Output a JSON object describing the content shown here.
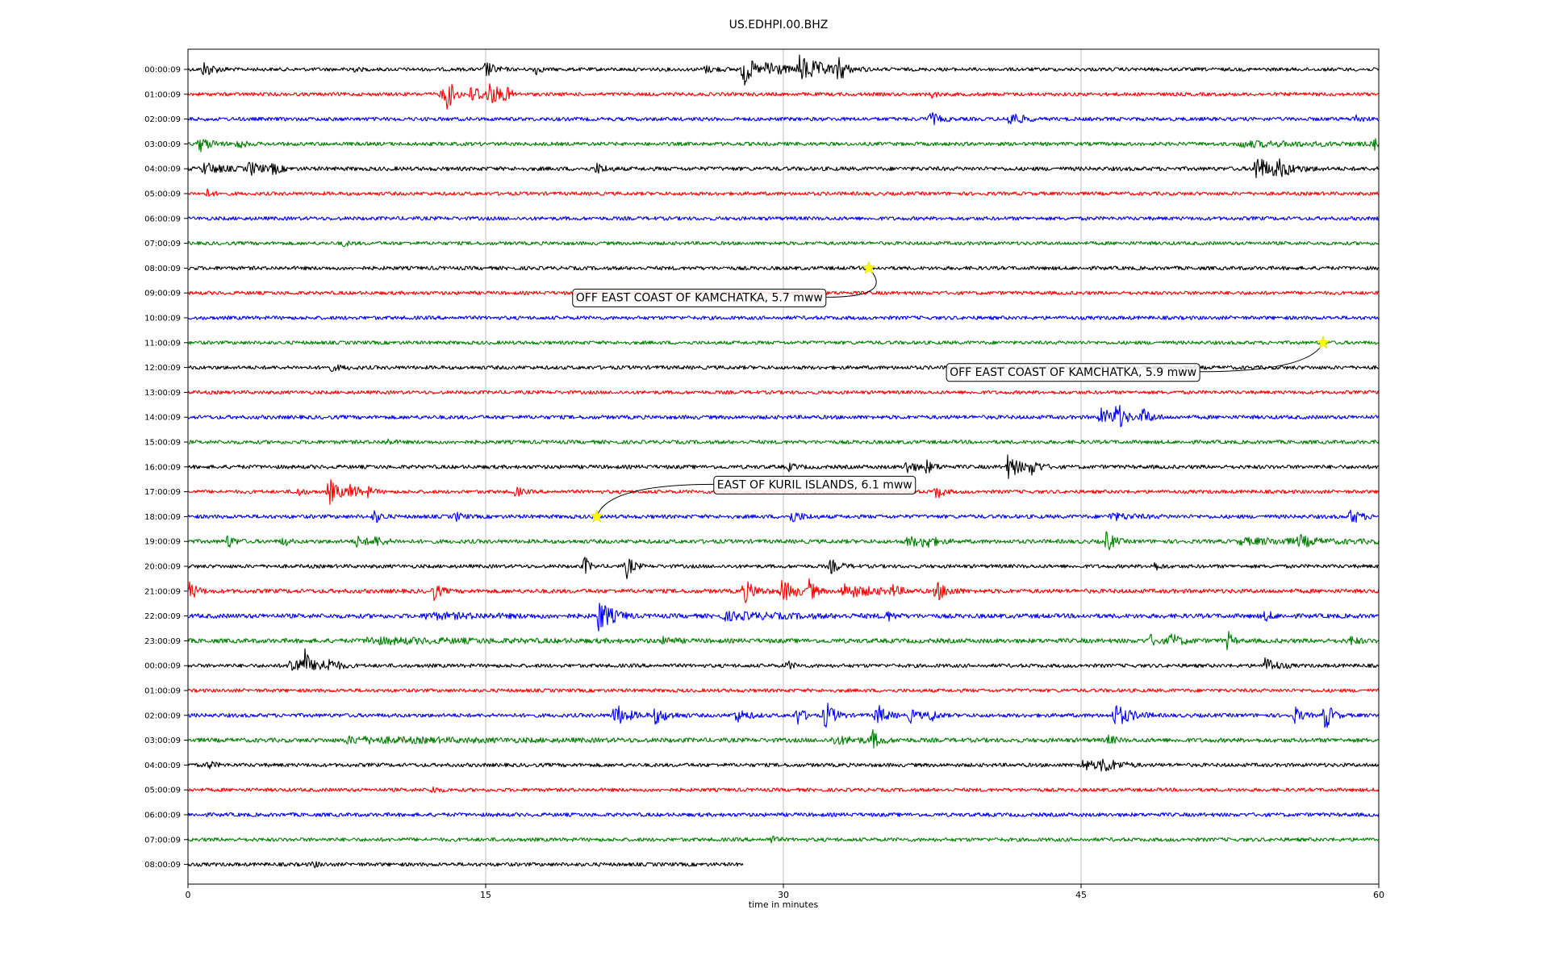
{
  "chart_data": {
    "type": "line",
    "title": "US.EDHPI.00.BHZ",
    "xlabel": "time in minutes",
    "ylabel": "",
    "xlim": [
      0,
      60
    ],
    "xticks": [
      0,
      15,
      30,
      45,
      60
    ],
    "grid": "vertical",
    "row_colors": [
      "#000000",
      "#ff0000",
      "#0000ff",
      "#008000"
    ],
    "rows": [
      {
        "label": "00:00:09",
        "noise": 2.2,
        "end_min": 60,
        "bursts": [
          {
            "t": 0.8,
            "a": 9,
            "w": 0.5
          },
          {
            "t": 8.1,
            "a": 4,
            "w": 0.3
          },
          {
            "t": 15.0,
            "a": 10,
            "w": 0.4
          },
          {
            "t": 17.5,
            "a": 7,
            "w": 0.2
          },
          {
            "t": 26.0,
            "a": 4,
            "w": 0.6
          },
          {
            "t": 28.0,
            "a": 24,
            "w": 0.4
          },
          {
            "t": 29.2,
            "a": 14,
            "w": 0.6
          },
          {
            "t": 30.8,
            "a": 16,
            "w": 1.2
          },
          {
            "t": 32.8,
            "a": 20,
            "w": 0.2
          }
        ]
      },
      {
        "label": "01:00:09",
        "noise": 2.2,
        "end_min": 60,
        "bursts": [
          {
            "t": 12.8,
            "a": 8,
            "w": 0.6
          },
          {
            "t": 13.1,
            "a": 18,
            "w": 0.2
          },
          {
            "t": 14.3,
            "a": 10,
            "w": 0.8
          },
          {
            "t": 15.2,
            "a": 11,
            "w": 0.5
          },
          {
            "t": 16.0,
            "a": 7,
            "w": 0.2
          },
          {
            "t": 37.5,
            "a": 5,
            "w": 0.2
          }
        ]
      },
      {
        "label": "02:00:09",
        "noise": 2.3,
        "end_min": 60,
        "bursts": [
          {
            "t": 37.4,
            "a": 8,
            "w": 0.4
          },
          {
            "t": 41.4,
            "a": 10,
            "w": 0.5
          },
          {
            "t": 58.8,
            "a": 5,
            "w": 0.3
          }
        ]
      },
      {
        "label": "03:00:09",
        "noise": 2.3,
        "end_min": 60,
        "bursts": [
          {
            "t": 0.6,
            "a": 9,
            "w": 0.5
          },
          {
            "t": 2.5,
            "a": 6,
            "w": 0.3
          },
          {
            "t": 53.0,
            "a": 3,
            "w": 4.0
          },
          {
            "t": 59.8,
            "a": 6,
            "w": 0.3
          }
        ]
      },
      {
        "label": "04:00:09",
        "noise": 2.5,
        "end_min": 60,
        "bursts": [
          {
            "t": 0.8,
            "a": 7,
            "w": 0.8
          },
          {
            "t": 3.1,
            "a": 8,
            "w": 0.6
          },
          {
            "t": 4.3,
            "a": 6,
            "w": 0.3
          },
          {
            "t": 20.6,
            "a": 6,
            "w": 0.4
          },
          {
            "t": 53.8,
            "a": 18,
            "w": 0.6
          },
          {
            "t": 54.8,
            "a": 10,
            "w": 0.8
          }
        ]
      },
      {
        "label": "05:00:09",
        "noise": 2.2,
        "end_min": 60,
        "bursts": [
          {
            "t": 1.0,
            "a": 5,
            "w": 0.2
          }
        ]
      },
      {
        "label": "06:00:09",
        "noise": 2.3,
        "end_min": 60,
        "bursts": []
      },
      {
        "label": "07:00:09",
        "noise": 2.2,
        "end_min": 60,
        "bursts": [
          {
            "t": 7.8,
            "a": 3,
            "w": 0.3
          }
        ]
      },
      {
        "label": "08:00:09",
        "noise": 2.3,
        "end_min": 60,
        "bursts": []
      },
      {
        "label": "09:00:09",
        "noise": 2.2,
        "end_min": 60,
        "bursts": []
      },
      {
        "label": "10:00:09",
        "noise": 2.3,
        "end_min": 60,
        "bursts": []
      },
      {
        "label": "11:00:09",
        "noise": 2.2,
        "end_min": 60,
        "bursts": []
      },
      {
        "label": "12:00:09",
        "noise": 2.3,
        "end_min": 60,
        "bursts": [
          {
            "t": 7.0,
            "a": 4,
            "w": 0.6
          }
        ]
      },
      {
        "label": "13:00:09",
        "noise": 2.2,
        "end_min": 60,
        "bursts": []
      },
      {
        "label": "14:00:09",
        "noise": 2.4,
        "end_min": 60,
        "bursts": [
          {
            "t": 46.0,
            "a": 10,
            "w": 0.8
          },
          {
            "t": 46.8,
            "a": 16,
            "w": 0.3
          },
          {
            "t": 48.1,
            "a": 10,
            "w": 0.4
          }
        ]
      },
      {
        "label": "15:00:09",
        "noise": 2.3,
        "end_min": 60,
        "bursts": [
          {
            "t": 10.0,
            "a": 3,
            "w": 0.3
          }
        ]
      },
      {
        "label": "16:00:09",
        "noise": 2.4,
        "end_min": 60,
        "bursts": [
          {
            "t": 30.3,
            "a": 4,
            "w": 0.3
          },
          {
            "t": 36.2,
            "a": 8,
            "w": 0.4
          },
          {
            "t": 37.2,
            "a": 7,
            "w": 0.4
          },
          {
            "t": 41.3,
            "a": 14,
            "w": 0.6
          },
          {
            "t": 42.5,
            "a": 8,
            "w": 0.4
          }
        ]
      },
      {
        "label": "17:00:09",
        "noise": 2.2,
        "end_min": 60,
        "bursts": [
          {
            "t": 5.5,
            "a": 5,
            "w": 0.3
          },
          {
            "t": 7.1,
            "a": 16,
            "w": 0.5
          },
          {
            "t": 8.2,
            "a": 8,
            "w": 0.4
          },
          {
            "t": 9.0,
            "a": 6,
            "w": 0.3
          },
          {
            "t": 16.5,
            "a": 6,
            "w": 0.3
          },
          {
            "t": 37.7,
            "a": 9,
            "w": 0.3
          }
        ]
      },
      {
        "label": "18:00:09",
        "noise": 2.4,
        "end_min": 60,
        "bursts": [
          {
            "t": 9.4,
            "a": 8,
            "w": 0.3
          },
          {
            "t": 13.5,
            "a": 5,
            "w": 0.3
          },
          {
            "t": 30.4,
            "a": 7,
            "w": 0.5
          },
          {
            "t": 46.5,
            "a": 4,
            "w": 1.0
          },
          {
            "t": 58.6,
            "a": 10,
            "w": 0.4
          }
        ]
      },
      {
        "label": "19:00:09",
        "noise": 2.5,
        "end_min": 60,
        "bursts": [
          {
            "t": 2.0,
            "a": 8,
            "w": 0.3
          },
          {
            "t": 4.8,
            "a": 6,
            "w": 0.2
          },
          {
            "t": 8.5,
            "a": 6,
            "w": 0.5
          },
          {
            "t": 9.4,
            "a": 5,
            "w": 0.5
          },
          {
            "t": 36.3,
            "a": 7,
            "w": 0.5
          },
          {
            "t": 37.1,
            "a": 8,
            "w": 0.5
          },
          {
            "t": 46.3,
            "a": 14,
            "w": 0.3
          },
          {
            "t": 53.0,
            "a": 3,
            "w": 5.0
          },
          {
            "t": 56.0,
            "a": 6,
            "w": 0.5
          }
        ]
      },
      {
        "label": "20:00:09",
        "noise": 2.3,
        "end_min": 60,
        "bursts": [
          {
            "t": 20.0,
            "a": 12,
            "w": 0.2
          },
          {
            "t": 22.1,
            "a": 14,
            "w": 0.3
          },
          {
            "t": 32.4,
            "a": 8,
            "w": 0.4
          },
          {
            "t": 48.6,
            "a": 6,
            "w": 0.3
          }
        ]
      },
      {
        "label": "21:00:09",
        "noise": 2.6,
        "end_min": 60,
        "bursts": [
          {
            "t": 0.1,
            "a": 12,
            "w": 0.3
          },
          {
            "t": 12.4,
            "a": 10,
            "w": 0.3
          },
          {
            "t": 28.0,
            "a": 14,
            "w": 0.5
          },
          {
            "t": 29.9,
            "a": 14,
            "w": 0.6
          },
          {
            "t": 31.3,
            "a": 12,
            "w": 0.3
          },
          {
            "t": 33.0,
            "a": 8,
            "w": 1.4
          },
          {
            "t": 35.5,
            "a": 6,
            "w": 0.3
          },
          {
            "t": 37.7,
            "a": 12,
            "w": 0.5
          }
        ]
      },
      {
        "label": "22:00:09",
        "noise": 2.8,
        "end_min": 60,
        "bursts": [
          {
            "t": 12.0,
            "a": 3,
            "w": 3.0
          },
          {
            "t": 20.7,
            "a": 20,
            "w": 0.6
          },
          {
            "t": 27.0,
            "a": 4,
            "w": 3.0
          },
          {
            "t": 35.2,
            "a": 6,
            "w": 0.3
          },
          {
            "t": 54.3,
            "a": 6,
            "w": 0.3
          }
        ]
      },
      {
        "label": "23:00:09",
        "noise": 2.8,
        "end_min": 60,
        "bursts": [
          {
            "t": 9.0,
            "a": 3,
            "w": 5.0
          },
          {
            "t": 24.0,
            "a": 5,
            "w": 0.4
          },
          {
            "t": 48.5,
            "a": 6,
            "w": 0.4
          },
          {
            "t": 49.5,
            "a": 8,
            "w": 0.5
          },
          {
            "t": 52.4,
            "a": 12,
            "w": 0.2
          },
          {
            "t": 58.6,
            "a": 5,
            "w": 0.3
          }
        ]
      },
      {
        "label": "00:00:09",
        "noise": 2.3,
        "end_min": 60,
        "bursts": [
          {
            "t": 5.2,
            "a": 14,
            "w": 0.5
          },
          {
            "t": 5.9,
            "a": 18,
            "w": 0.2
          },
          {
            "t": 6.5,
            "a": 8,
            "w": 0.5
          },
          {
            "t": 7.0,
            "a": 7,
            "w": 0.5
          },
          {
            "t": 30.2,
            "a": 5,
            "w": 0.3
          },
          {
            "t": 54.3,
            "a": 10,
            "w": 0.5
          }
        ]
      },
      {
        "label": "01:00:09",
        "noise": 2.2,
        "end_min": 60,
        "bursts": []
      },
      {
        "label": "02:00:09",
        "noise": 2.4,
        "end_min": 60,
        "bursts": [
          {
            "t": 21.5,
            "a": 14,
            "w": 0.6
          },
          {
            "t": 23.5,
            "a": 10,
            "w": 0.6
          },
          {
            "t": 27.6,
            "a": 8,
            "w": 0.5
          },
          {
            "t": 30.7,
            "a": 12,
            "w": 0.3
          },
          {
            "t": 32.1,
            "a": 18,
            "w": 0.4
          },
          {
            "t": 34.7,
            "a": 14,
            "w": 0.4
          },
          {
            "t": 36.4,
            "a": 8,
            "w": 0.4
          },
          {
            "t": 37.4,
            "a": 8,
            "w": 0.3
          },
          {
            "t": 46.7,
            "a": 14,
            "w": 0.7
          },
          {
            "t": 55.8,
            "a": 10,
            "w": 0.3
          },
          {
            "t": 57.3,
            "a": 20,
            "w": 0.3
          }
        ]
      },
      {
        "label": "03:00:09",
        "noise": 2.7,
        "end_min": 60,
        "bursts": [
          {
            "t": 8.0,
            "a": 3,
            "w": 6.0
          },
          {
            "t": 32.5,
            "a": 4,
            "w": 1.5
          },
          {
            "t": 34.5,
            "a": 10,
            "w": 0.3
          },
          {
            "t": 46.4,
            "a": 5,
            "w": 0.3
          }
        ]
      },
      {
        "label": "04:00:09",
        "noise": 2.3,
        "end_min": 60,
        "bursts": [
          {
            "t": 1.0,
            "a": 5,
            "w": 0.3
          },
          {
            "t": 45.0,
            "a": 6,
            "w": 1.0
          },
          {
            "t": 46.1,
            "a": 8,
            "w": 0.6
          }
        ]
      },
      {
        "label": "05:00:09",
        "noise": 2.2,
        "end_min": 60,
        "bursts": [
          {
            "t": 12.3,
            "a": 4,
            "w": 0.3
          }
        ]
      },
      {
        "label": "06:00:09",
        "noise": 2.4,
        "end_min": 60,
        "bursts": []
      },
      {
        "label": "07:00:09",
        "noise": 2.3,
        "end_min": 60,
        "bursts": [
          {
            "t": 29.4,
            "a": 5,
            "w": 0.2
          }
        ]
      },
      {
        "label": "08:00:09",
        "noise": 2.3,
        "end_min": 28,
        "bursts": [
          {
            "t": 6.3,
            "a": 3,
            "w": 0.3
          }
        ]
      }
    ],
    "annotations": [
      {
        "text": "OFF EAST COAST OF KAMCHATKA, 5.7 mww",
        "row": 8,
        "t_min": 34.3
      },
      {
        "text": "OFF EAST COAST OF KAMCHATKA, 5.9 mww",
        "row": 11,
        "t_min": 57.2
      },
      {
        "text": "EAST OF KURIL ISLANDS, 6.1 mww",
        "row": 18,
        "t_min": 20.6
      }
    ],
    "marker_color": "#ffff00"
  }
}
